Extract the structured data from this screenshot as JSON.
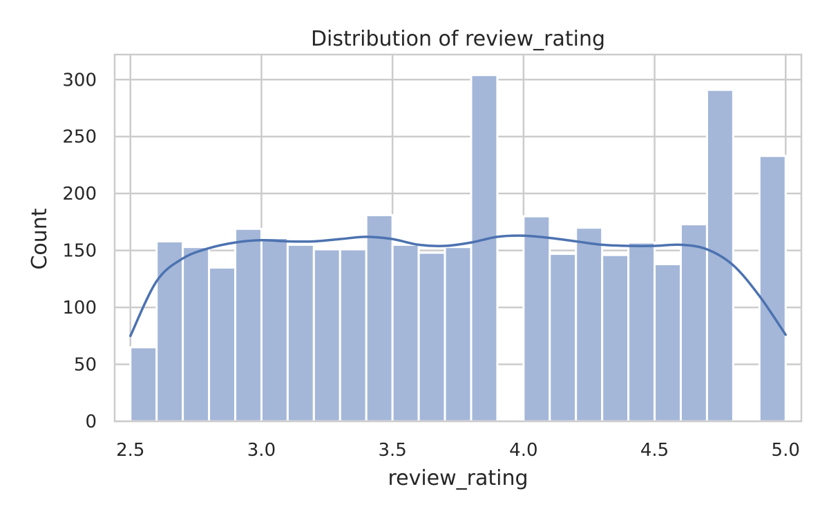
{
  "chart_data": {
    "type": "bar",
    "title": "Distribution of review_rating",
    "xlabel": "review_rating",
    "ylabel": "Count",
    "xlim": [
      2.44,
      5.06
    ],
    "ylim": [
      0,
      322
    ],
    "grid": true,
    "legend": "none",
    "bar_color": "#a4b7d9",
    "kde_color": "#4c72b0",
    "grid_color": "#cccccc",
    "x_ticks": [
      2.5,
      3.0,
      3.5,
      4.0,
      4.5,
      5.0
    ],
    "x_tick_labels": [
      "2.5",
      "3.0",
      "3.5",
      "4.0",
      "4.5",
      "5.0"
    ],
    "y_ticks": [
      0,
      50,
      100,
      150,
      200,
      250,
      300
    ],
    "y_tick_labels": [
      "0",
      "50",
      "100",
      "150",
      "200",
      "250",
      "300"
    ],
    "bin_edges": [
      2.5,
      2.6,
      2.7,
      2.8,
      2.9,
      3.0,
      3.1,
      3.2,
      3.3,
      3.4,
      3.5,
      3.6,
      3.7,
      3.8,
      3.9,
      4.0,
      4.1,
      4.2,
      4.3,
      4.4,
      4.5,
      4.6,
      4.7,
      4.8,
      4.9,
      5.0
    ],
    "counts": [
      65,
      158,
      153,
      135,
      169,
      161,
      155,
      151,
      151,
      181,
      155,
      148,
      153,
      304,
      0,
      180,
      147,
      170,
      146,
      157,
      138,
      173,
      291,
      0,
      233
    ],
    "kde": {
      "x": [
        2.5,
        2.6,
        2.7,
        2.8,
        2.9,
        3.0,
        3.1,
        3.2,
        3.3,
        3.4,
        3.5,
        3.6,
        3.7,
        3.8,
        3.9,
        4.0,
        4.1,
        4.2,
        4.3,
        4.4,
        4.5,
        4.6,
        4.7,
        4.8,
        4.9,
        5.0
      ],
      "y": [
        75,
        123,
        143,
        152,
        157,
        159,
        158,
        158,
        160,
        162,
        160,
        155,
        154,
        157,
        162,
        163,
        161,
        158,
        155,
        154,
        154,
        155,
        151,
        137,
        110,
        76
      ]
    }
  }
}
